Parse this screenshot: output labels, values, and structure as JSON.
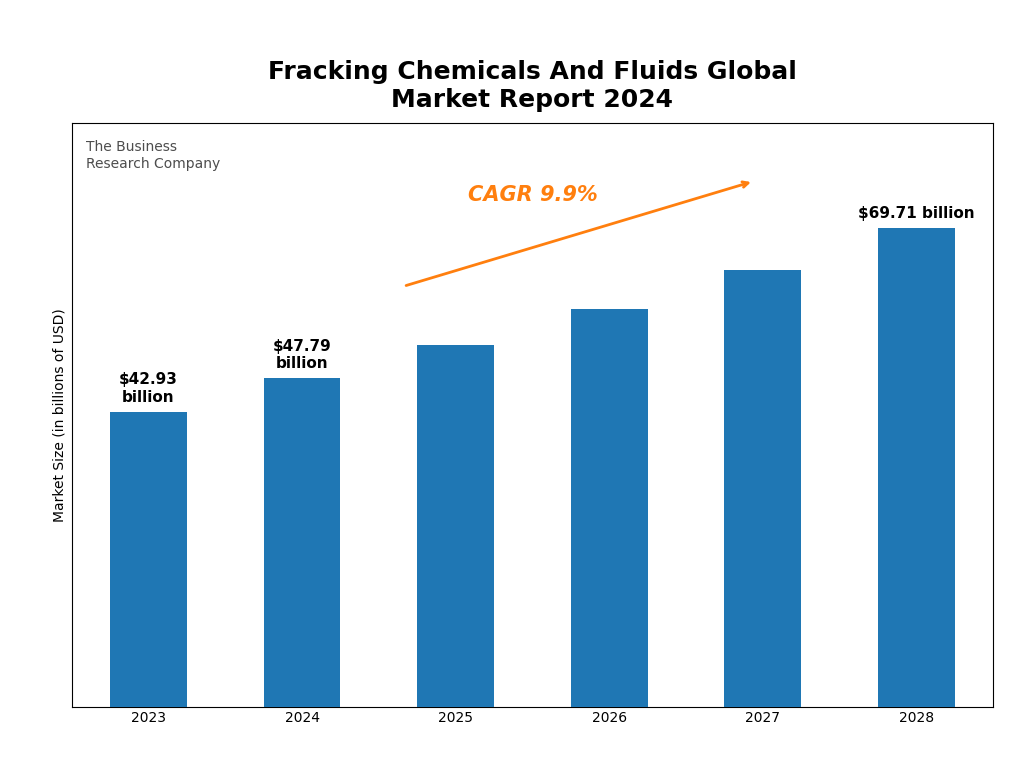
{
  "chart_data": {
    "type": "bar",
    "title": "Fracking Chemicals And Fluids Global\nMarket Report 2024",
    "categories": [
      "2023",
      "2024",
      "2025",
      "2026",
      "2027",
      "2028"
    ],
    "values": [
      42.93,
      47.79,
      52.63,
      57.86,
      63.61,
      69.71
    ],
    "value_labels": [
      "$42.93\nbillion",
      "$47.79\nbillion",
      null,
      null,
      null,
      "$69.71 billion"
    ],
    "data_labels": true,
    "ylabel": "Market Size (in billions of USD)",
    "ylim": [
      0,
      85
    ],
    "tick_labels": "x",
    "annotations": [
      "CAGR 9.9%",
      "The Business\nResearch Company"
    ]
  }
}
